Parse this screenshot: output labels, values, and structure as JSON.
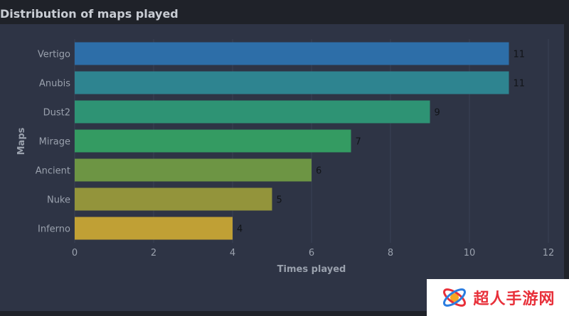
{
  "chart_data": {
    "type": "bar",
    "orientation": "horizontal",
    "title": "Distribution of maps played",
    "xlabel": "Times played",
    "ylabel": "Maps",
    "categories": [
      "Vertigo",
      "Anubis",
      "Dust2",
      "Mirage",
      "Ancient",
      "Nuke",
      "Inferno"
    ],
    "values": [
      11,
      11,
      9,
      7,
      6,
      5,
      4
    ],
    "colors": [
      "#2d6ea8",
      "#2e8490",
      "#2e9374",
      "#349b62",
      "#6d9544",
      "#93943b",
      "#c0a035"
    ],
    "xlim": [
      0,
      12
    ],
    "xticks": [
      0,
      2,
      4,
      6,
      8,
      10,
      12
    ],
    "grid": true,
    "data_labels": true
  },
  "watermark": {
    "text": "超人手游网"
  }
}
